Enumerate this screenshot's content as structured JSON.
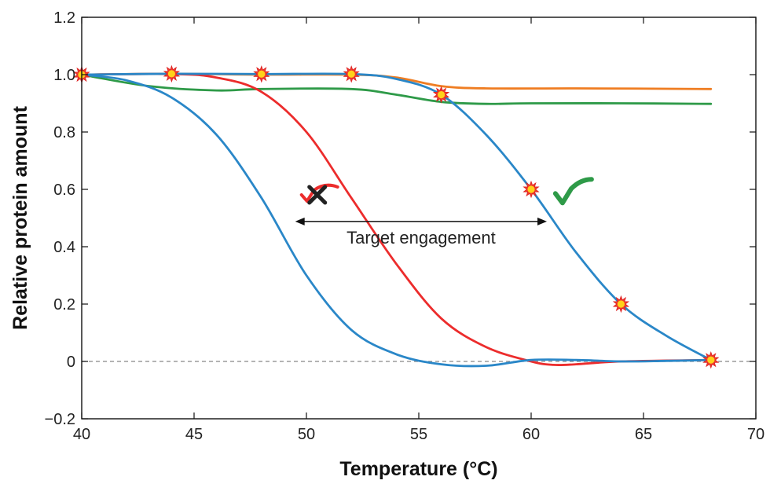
{
  "chart_data": {
    "type": "line",
    "xlabel": "Temperature (°C)",
    "ylabel": "Relative protein amount",
    "xlim": [
      40,
      70
    ],
    "ylim": [
      -0.2,
      1.2
    ],
    "x_ticks": [
      40,
      45,
      50,
      55,
      60,
      65,
      70
    ],
    "y_ticks": [
      -0.2,
      0,
      0.2,
      0.4,
      0.6,
      0.8,
      1.0,
      1.2
    ],
    "y_tick_labels": [
      "−0.2",
      "0",
      "0.2",
      "0.4",
      "0.6",
      "0.8",
      "1.0",
      "1.2"
    ],
    "grid": false,
    "reference_line_y": 0,
    "series": [
      {
        "color": "#ef7d22",
        "points": [
          [
            40,
            1.0
          ],
          [
            44,
            1.003
          ],
          [
            48,
            1.0
          ],
          [
            52,
            1.0
          ],
          [
            54,
            0.99
          ],
          [
            56,
            0.96
          ],
          [
            58,
            0.952
          ],
          [
            62,
            0.952
          ],
          [
            68,
            0.95
          ]
        ]
      },
      {
        "color": "#2e9a48",
        "points": [
          [
            40,
            1.0
          ],
          [
            43,
            0.96
          ],
          [
            46,
            0.945
          ],
          [
            48,
            0.95
          ],
          [
            52,
            0.95
          ],
          [
            54,
            0.93
          ],
          [
            56,
            0.905
          ],
          [
            58,
            0.898
          ],
          [
            60,
            0.9
          ],
          [
            64,
            0.9
          ],
          [
            68,
            0.898
          ]
        ]
      },
      {
        "color": "#ec2c2c",
        "points": [
          [
            40,
            1.0
          ],
          [
            44,
            1.002
          ],
          [
            46,
            0.99
          ],
          [
            48,
            0.94
          ],
          [
            50,
            0.8
          ],
          [
            52,
            0.57
          ],
          [
            54,
            0.34
          ],
          [
            56,
            0.15
          ],
          [
            58,
            0.05
          ],
          [
            60,
            0.0
          ],
          [
            61,
            -0.012
          ],
          [
            62,
            -0.01
          ],
          [
            64,
            0.0
          ],
          [
            68,
            0.005
          ]
        ]
      },
      {
        "color": "#2a87c8",
        "points": [
          [
            40,
            1.0
          ],
          [
            42,
            0.98
          ],
          [
            44,
            0.92
          ],
          [
            46,
            0.79
          ],
          [
            48,
            0.57
          ],
          [
            50,
            0.3
          ],
          [
            52,
            0.11
          ],
          [
            54,
            0.025
          ],
          [
            56,
            -0.01
          ],
          [
            58,
            -0.015
          ],
          [
            60,
            0.005
          ],
          [
            62,
            0.005
          ],
          [
            64,
            0.0
          ],
          [
            66,
            0.002
          ],
          [
            68,
            0.005
          ]
        ]
      },
      {
        "color": "#2a87c8",
        "points": [
          [
            40,
            1.0
          ],
          [
            44,
            1.003
          ],
          [
            48,
            1.002
          ],
          [
            52,
            1.002
          ],
          [
            54,
            0.985
          ],
          [
            56,
            0.93
          ],
          [
            58,
            0.79
          ],
          [
            60,
            0.6
          ],
          [
            62,
            0.38
          ],
          [
            64,
            0.2
          ],
          [
            66,
            0.09
          ],
          [
            68,
            0.005
          ]
        ]
      }
    ],
    "markers": [
      [
        40,
        1.0
      ],
      [
        44,
        1.003
      ],
      [
        48,
        1.002
      ],
      [
        52,
        1.002
      ],
      [
        56,
        0.93
      ],
      [
        60,
        0.6
      ],
      [
        64,
        0.2
      ],
      [
        68,
        0.005
      ]
    ],
    "annotations": [
      {
        "text": "Target engagement",
        "x_from": 49.5,
        "x_to": 60.7,
        "y": 0.488
      }
    ],
    "symbols": [
      {
        "kind": "cross",
        "color": "#222222",
        "check_color": "#ec2c2c",
        "x": 50.2,
        "y": 0.57
      },
      {
        "kind": "check",
        "color": "#2e9a48",
        "x": 61.5,
        "y": 0.58
      }
    ]
  }
}
